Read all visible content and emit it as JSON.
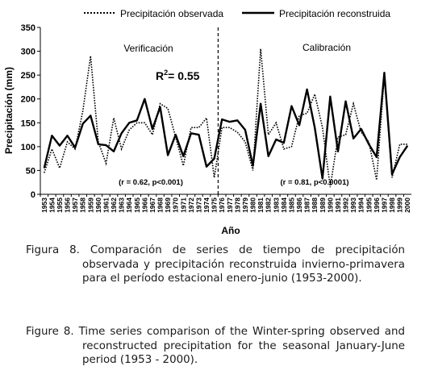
{
  "chart_data": {
    "type": "line",
    "title": "",
    "xlabel": "Año",
    "ylabel": "Precipitación (mm)",
    "ylim": [
      0,
      350
    ],
    "yticks": [
      0,
      50,
      100,
      150,
      200,
      250,
      300,
      350
    ],
    "grid": false,
    "legend_position": "top",
    "x": [
      1953,
      1954,
      1955,
      1956,
      1957,
      1958,
      1959,
      1960,
      1961,
      1962,
      1963,
      1964,
      1965,
      1966,
      1967,
      1968,
      1969,
      1970,
      1971,
      1972,
      1973,
      1974,
      1975,
      1976,
      1977,
      1978,
      1979,
      1980,
      1981,
      1982,
      1983,
      1984,
      1985,
      1986,
      1987,
      1988,
      1989,
      1990,
      1991,
      1992,
      1993,
      1994,
      1995,
      1996,
      1997,
      1998,
      1999,
      2000
    ],
    "series": [
      {
        "name": "Precipitación observada",
        "style": "dotted",
        "values": [
          45,
          95,
          55,
          110,
          95,
          175,
          290,
          110,
          65,
          160,
          95,
          135,
          150,
          150,
          125,
          190,
          180,
          120,
          60,
          140,
          140,
          160,
          35,
          140,
          140,
          130,
          110,
          50,
          305,
          125,
          150,
          95,
          100,
          165,
          170,
          210,
          140,
          15,
          120,
          125,
          190,
          130,
          110,
          30,
          250,
          35,
          105,
          105
        ]
      },
      {
        "name": "Precipitación reconstruida",
        "style": "solid",
        "values": [
          55,
          123,
          102,
          123,
          98,
          148,
          165,
          105,
          103,
          90,
          128,
          150,
          155,
          200,
          137,
          183,
          82,
          125,
          80,
          128,
          125,
          58,
          75,
          157,
          152,
          155,
          135,
          60,
          190,
          80,
          115,
          108,
          185,
          145,
          220,
          140,
          33,
          205,
          90,
          195,
          117,
          137,
          105,
          78,
          255,
          42,
          78,
          102
        ]
      }
    ],
    "annotations": [
      {
        "text": "Verificación"
      },
      {
        "text": "Calibración"
      },
      {
        "text": "R²= 0.55",
        "label_main": "R",
        "label_sup": "2",
        "label_rest": "= 0.55"
      },
      {
        "text": "(r = 0.62, p<0.001)"
      },
      {
        "text": "(r = 0.81, p<0.0001)"
      }
    ],
    "divider_x": 1975.5
  },
  "caption": {
    "es": "Figura 8. Comparación de series de tiempo de precipitación observada y precipitación reconstruida invierno-primavera para el período estacional enero-junio (1953-2000).",
    "en": "Figure 8. Time series comparison of the Winter-spring observed and reconstructed precipitation for the seasonal January-June period (1953 - 2000)."
  }
}
